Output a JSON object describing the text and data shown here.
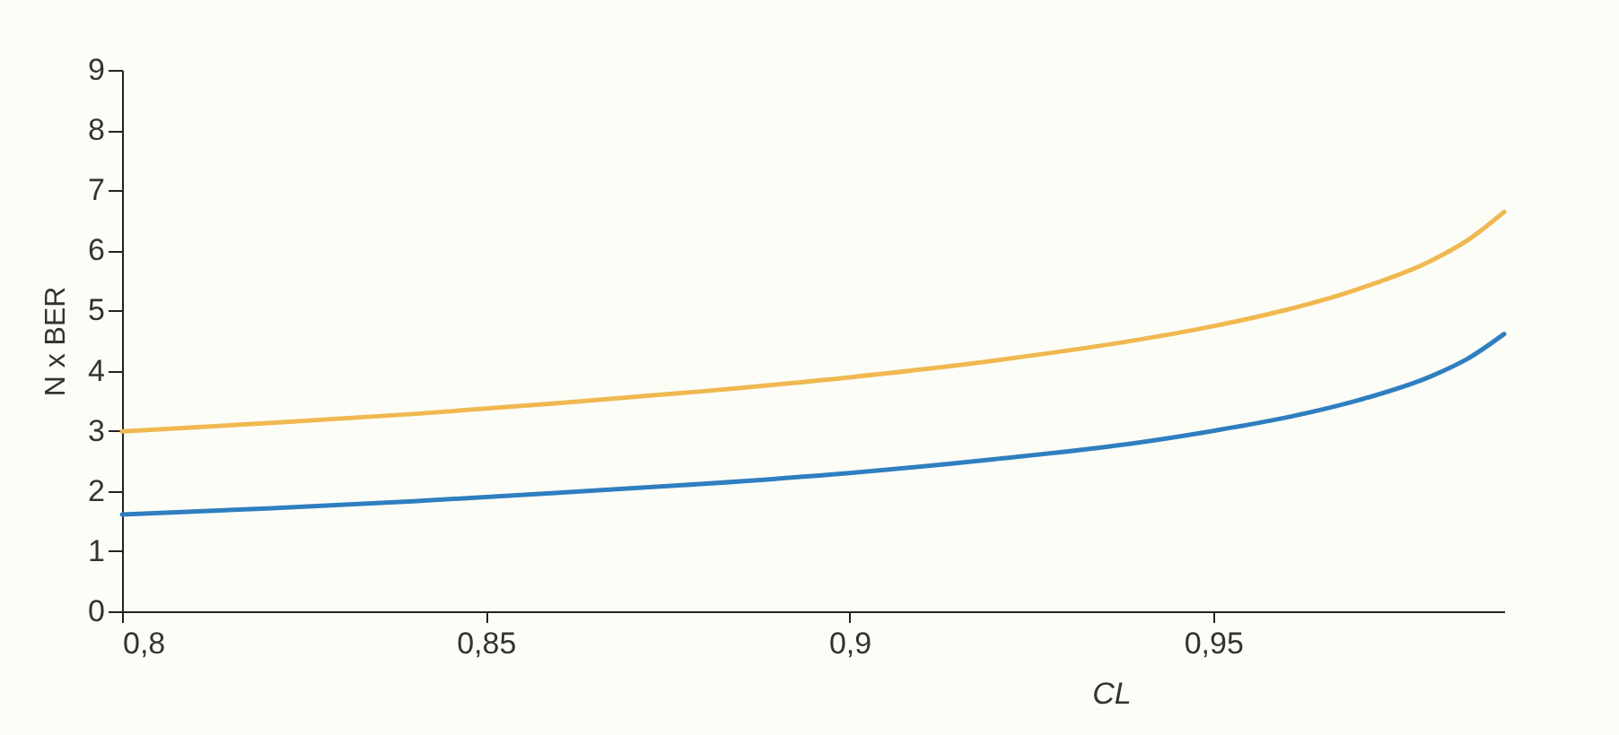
{
  "chart_data": {
    "type": "line",
    "xlabel": "CL",
    "ylabel": "N x BER",
    "x": [
      0.8,
      0.82,
      0.84,
      0.86,
      0.88,
      0.9,
      0.92,
      0.94,
      0.95,
      0.96,
      0.97,
      0.98,
      0.985,
      0.99
    ],
    "series": [
      {
        "color": "#f0b850",
        "values": [
          2.99,
          3.13,
          3.28,
          3.46,
          3.66,
          3.89,
          4.17,
          4.52,
          4.74,
          5.01,
          5.36,
          5.83,
          6.17,
          6.64
        ]
      },
      {
        "color": "#2f7fc0",
        "values": [
          1.61,
          1.71,
          1.83,
          1.97,
          2.12,
          2.3,
          2.53,
          2.81,
          3.0,
          3.22,
          3.51,
          3.91,
          4.2,
          4.61
        ]
      }
    ],
    "xlim": [
      0.8,
      0.99
    ],
    "xticks": [
      {
        "value": 0.8,
        "label": "0,8"
      },
      {
        "value": 0.85,
        "label": "0,85"
      },
      {
        "value": 0.9,
        "label": "0,9"
      },
      {
        "value": 0.95,
        "label": "0,95"
      }
    ],
    "ylim": [
      0,
      9
    ],
    "yticks": [
      0,
      1,
      2,
      3,
      4,
      5,
      6,
      7,
      8,
      9
    ],
    "grid": false,
    "legend": false,
    "marker": "none",
    "line_style": "solid"
  }
}
